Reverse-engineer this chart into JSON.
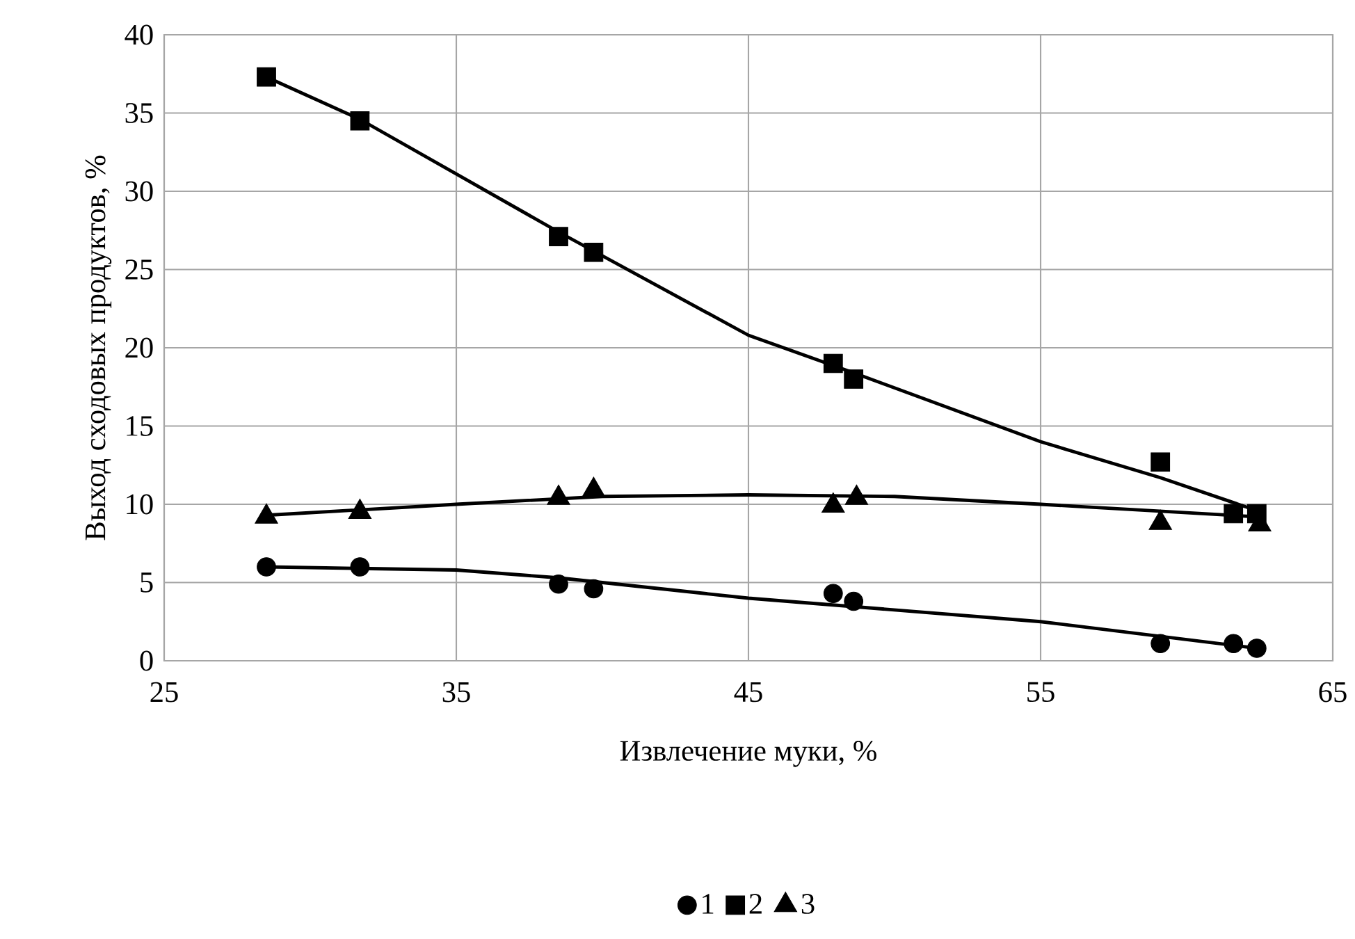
{
  "chart_data": {
    "type": "scatter",
    "xlabel": "Извлечение муки, %",
    "ylabel": "Выход сходовых продуктов, %",
    "xlim": [
      25,
      65
    ],
    "xticks": [
      25,
      35,
      45,
      55,
      65
    ],
    "ylim": [
      0,
      40
    ],
    "yticks": [
      0,
      5,
      10,
      15,
      20,
      25,
      30,
      35,
      40
    ],
    "grid": true,
    "legend": "bottom",
    "series": [
      {
        "name": "1",
        "marker": "circle",
        "color": "#000000",
        "x": [
          28.5,
          31.7,
          38.5,
          39.7,
          47.9,
          48.6,
          59.1,
          61.6,
          62.4
        ],
        "values": [
          6.0,
          6.0,
          4.9,
          4.6,
          4.3,
          3.8,
          1.1,
          1.1,
          0.8
        ]
      },
      {
        "name": "2",
        "marker": "square",
        "color": "#000000",
        "x": [
          28.5,
          31.7,
          38.5,
          39.7,
          47.9,
          48.6,
          59.1,
          61.6,
          62.4
        ],
        "values": [
          37.3,
          34.5,
          27.1,
          26.1,
          19.0,
          18.0,
          12.7,
          9.4,
          9.4
        ]
      },
      {
        "name": "3",
        "marker": "triangle",
        "color": "#000000",
        "x": [
          28.5,
          31.7,
          38.5,
          39.7,
          47.9,
          48.7,
          59.1,
          61.7,
          62.5
        ],
        "values": [
          9.2,
          9.5,
          10.4,
          10.9,
          9.9,
          10.4,
          8.8,
          null,
          8.7
        ]
      },
      {
        "type": "line",
        "marker": "none",
        "line_style": "solid",
        "color": "#000000",
        "x": [
          28.5,
          31.7,
          35,
          38.5,
          45,
          55,
          62.4
        ],
        "values": [
          6.0,
          5.9,
          5.8,
          5.3,
          4.0,
          2.5,
          0.8
        ]
      },
      {
        "type": "line",
        "marker": "none",
        "line_style": "solid",
        "color": "#000000",
        "x": [
          28.5,
          31.7,
          38.5,
          45,
          48.6,
          55,
          59.1,
          62.4
        ],
        "values": [
          37.3,
          34.6,
          27.4,
          20.8,
          18.4,
          14.0,
          11.7,
          9.6
        ]
      },
      {
        "type": "line",
        "marker": "none",
        "line_style": "solid",
        "color": "#000000",
        "x": [
          28.5,
          35,
          40,
          45,
          50,
          55,
          62.4
        ],
        "values": [
          9.3,
          10.0,
          10.5,
          10.6,
          10.5,
          10.0,
          9.2
        ]
      }
    ]
  }
}
